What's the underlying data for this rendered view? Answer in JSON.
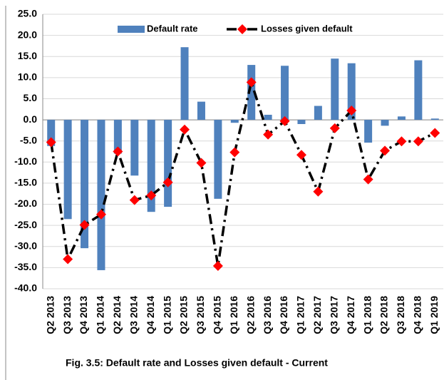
{
  "chart_data": {
    "type": "bar-line",
    "caption": "Fig. 3.5: Default rate and Losses given default - Current",
    "categories": [
      "Q2 2013",
      "Q3 2013",
      "Q4 2013",
      "Q1 2014",
      "Q2 2014",
      "Q3 2014",
      "Q4 2014",
      "Q1 2015",
      "Q2 2015",
      "Q3 2015",
      "Q4 2015",
      "Q1 2016",
      "Q2 2016",
      "Q3 2016",
      "Q4 2016",
      "Q1 2017",
      "Q2 2017",
      "Q3 2017",
      "Q4 2017",
      "Q1 2018",
      "Q2 2018",
      "Q3 2018",
      "Q4 2018",
      "Q1 2019"
    ],
    "series": [
      {
        "name": "Default rate",
        "type": "bar",
        "color": "#4f81bd",
        "values": [
          -6.2,
          -23.5,
          -30.4,
          -35.6,
          -8,
          -13.2,
          -21.8,
          -20.6,
          17.2,
          4.3,
          -18.7,
          -0.7,
          13.0,
          1.2,
          12.8,
          -1.0,
          3.3,
          14.5,
          13.4,
          -5.4,
          -1.4,
          0.8,
          14.1,
          0.3
        ]
      },
      {
        "name": "Losses given default",
        "type": "line",
        "color": "#000000",
        "marker_color": "#ff0000",
        "values": [
          -5.3,
          -33,
          -24.9,
          -22.4,
          -7.5,
          -19,
          -17.9,
          -14.8,
          -2.3,
          -10.2,
          -34.6,
          -7.7,
          8.9,
          -3.5,
          -0.3,
          -8.3,
          -17,
          -2,
          2.2,
          -14.1,
          -7.3,
          -5.1,
          -5.1,
          -3.1
        ]
      }
    ],
    "ylim": [
      -40,
      25
    ],
    "yticks": [
      {
        "value": -40,
        "label": "-40.0"
      },
      {
        "value": -35,
        "label": "-35.0"
      },
      {
        "value": -30,
        "label": "-30.0"
      },
      {
        "value": -25,
        "label": "-25.0"
      },
      {
        "value": -20,
        "label": "-20.0"
      },
      {
        "value": -15,
        "label": "-15.0"
      },
      {
        "value": -10,
        "label": "-10.0"
      },
      {
        "value": -5,
        "label": "-5.0"
      },
      {
        "value": 0,
        "label": "0.0"
      },
      {
        "value": 5,
        "label": "5.0"
      },
      {
        "value": 10,
        "label": "10.0"
      },
      {
        "value": 15,
        "label": "15.0"
      },
      {
        "value": 20,
        "label": "20.0"
      },
      {
        "value": 25,
        "label": "25.0"
      }
    ],
    "grid": true
  }
}
